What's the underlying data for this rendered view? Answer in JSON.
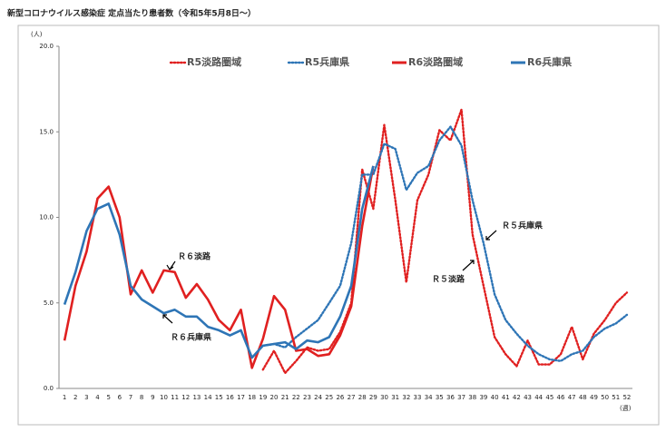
{
  "chart_data": {
    "type": "line",
    "title": "新型コロナウイルス感染症 定点当たり患者数（令和5年5月8日～）",
    "y_label": "(人)",
    "x_label": "(週)",
    "categories": [
      1,
      2,
      3,
      4,
      5,
      6,
      7,
      8,
      9,
      10,
      11,
      12,
      13,
      14,
      15,
      16,
      17,
      18,
      19,
      20,
      21,
      22,
      23,
      24,
      25,
      26,
      27,
      28,
      29,
      30,
      31,
      32,
      33,
      34,
      35,
      36,
      37,
      38,
      39,
      40,
      41,
      42,
      43,
      44,
      45,
      46,
      47,
      48,
      49,
      50,
      51,
      52
    ],
    "ylim": [
      0,
      20
    ],
    "yticks": [
      {
        "value": 0,
        "label": "0.0"
      },
      {
        "value": 5,
        "label": "5.0"
      },
      {
        "value": 10,
        "label": "10.0"
      },
      {
        "value": 15,
        "label": "15.0"
      },
      {
        "value": 20,
        "label": "20.0"
      }
    ],
    "grid": false,
    "legend": "top",
    "series": [
      {
        "name": "R5淡路圏域",
        "color": "#e02020",
        "dashed": true,
        "values": [
          null,
          null,
          null,
          null,
          null,
          null,
          null,
          null,
          null,
          null,
          null,
          null,
          null,
          null,
          null,
          null,
          null,
          null,
          1.1,
          2.2,
          0.9,
          1.6,
          2.4,
          2.2,
          2.3,
          3.3,
          5.0,
          12.8,
          10.5,
          15.4,
          11.0,
          6.2,
          11.0,
          12.5,
          15.1,
          14.5,
          16.3,
          9.0,
          6.0,
          3.0,
          2.0,
          1.3,
          2.8,
          1.4,
          1.4,
          2.0,
          3.6,
          1.7,
          3.2,
          4.0,
          5.0,
          5.6
        ]
      },
      {
        "name": "R5兵庫県",
        "color": "#2e75b6",
        "dashed": true,
        "values": [
          null,
          null,
          null,
          null,
          null,
          null,
          null,
          null,
          null,
          null,
          null,
          null,
          null,
          null,
          null,
          null,
          null,
          null,
          2.5,
          2.6,
          2.4,
          3.0,
          3.5,
          4.0,
          5.0,
          6.0,
          8.5,
          12.5,
          12.5,
          14.3,
          14.0,
          11.6,
          12.6,
          13.0,
          14.5,
          15.3,
          14.2,
          11.0,
          8.5,
          5.5,
          4.0,
          3.2,
          2.5,
          2.0,
          1.7,
          1.6,
          2.0,
          2.2,
          3.0,
          3.5,
          3.8,
          4.3
        ]
      },
      {
        "name": "R6淡路圏域",
        "color": "#e02020",
        "dashed": false,
        "values": [
          2.8,
          6.0,
          8.0,
          11.1,
          11.8,
          10.0,
          5.5,
          6.9,
          5.6,
          6.9,
          6.8,
          5.3,
          6.1,
          5.2,
          4.0,
          3.4,
          4.6,
          1.2,
          2.9,
          5.4,
          4.6,
          2.2,
          2.3,
          1.9,
          2.0,
          3.1,
          4.8,
          9.5,
          13.0,
          null,
          null,
          null,
          null,
          null,
          null,
          null,
          null,
          null,
          null,
          null,
          null,
          null,
          null,
          null,
          null,
          null,
          null,
          null,
          null,
          null,
          null,
          null
        ]
      },
      {
        "name": "R6兵庫県",
        "color": "#2e75b6",
        "dashed": false,
        "values": [
          4.9,
          6.8,
          9.2,
          10.5,
          10.8,
          9.0,
          6.0,
          5.2,
          4.8,
          4.4,
          4.6,
          4.2,
          4.2,
          3.6,
          3.4,
          3.1,
          3.4,
          1.8,
          2.5,
          2.6,
          2.7,
          2.3,
          2.8,
          2.7,
          3.0,
          4.2,
          6.0,
          10.5,
          13.0,
          null,
          null,
          null,
          null,
          null,
          null,
          null,
          null,
          null,
          null,
          null,
          null,
          null,
          null,
          null,
          null,
          null,
          null,
          null,
          null,
          null,
          null,
          null
        ]
      }
    ],
    "annotations": [
      {
        "text": "Ｒ６淡路"
      },
      {
        "text": "Ｒ６兵庫県"
      },
      {
        "text": "Ｒ５兵庫県"
      },
      {
        "text": "Ｒ５淡路"
      }
    ]
  }
}
